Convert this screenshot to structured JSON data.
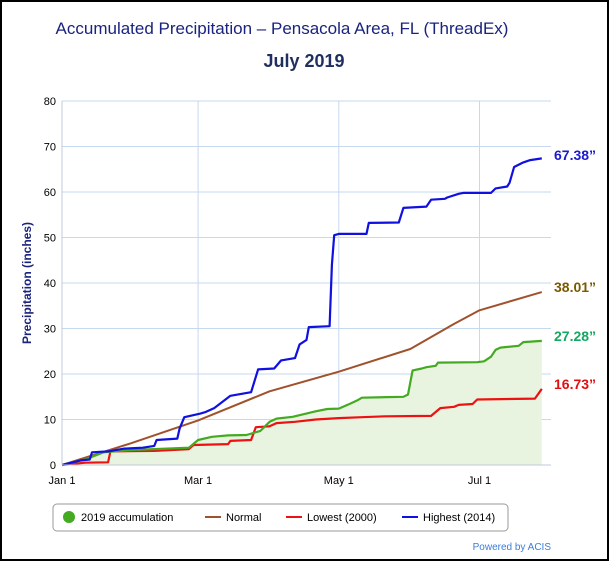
{
  "chart_data": {
    "type": "line",
    "title": "Accumulated Precipitation – Pensacola Area, FL (ThreadEx)",
    "subtitle": "July 2019",
    "xlabel": "",
    "ylabel": "Precipitation (inches)",
    "ylim": [
      0,
      80
    ],
    "yticks": [
      "0",
      "10",
      "20",
      "30",
      "40",
      "50",
      "60",
      "70",
      "80"
    ],
    "xlim": [
      0,
      212
    ],
    "xticks": [
      {
        "label": "Jan 1",
        "x": 0
      },
      {
        "label": "Mar 1",
        "x": 59
      },
      {
        "label": "May 1",
        "x": 120
      },
      {
        "label": "Jul 1",
        "x": 181
      }
    ],
    "grid": true,
    "legend_position": "bottom",
    "credit": "Powered by ACIS",
    "series": [
      {
        "name": "Highest (2014)",
        "color": "#1010e0",
        "end_label": "67.38”",
        "end_color": "#1a1ad0",
        "points": [
          [
            0,
            0
          ],
          [
            8,
            1
          ],
          [
            12,
            1.2
          ],
          [
            13,
            2.8
          ],
          [
            20,
            3
          ],
          [
            27,
            3.6
          ],
          [
            35,
            3.8
          ],
          [
            40,
            4.2
          ],
          [
            41,
            5.5
          ],
          [
            50,
            5.8
          ],
          [
            51,
            8
          ],
          [
            53,
            10.5
          ],
          [
            60,
            11.3
          ],
          [
            62,
            11.6
          ],
          [
            66,
            12.5
          ],
          [
            73,
            15.2
          ],
          [
            82,
            16
          ],
          [
            85,
            21
          ],
          [
            92,
            21.2
          ],
          [
            95,
            23
          ],
          [
            101,
            23.5
          ],
          [
            103,
            26.5
          ],
          [
            106,
            27.5
          ],
          [
            107,
            30.3
          ],
          [
            116,
            30.5
          ],
          [
            117,
            44
          ],
          [
            118,
            50.5
          ],
          [
            120,
            50.8
          ],
          [
            132,
            50.8
          ],
          [
            133,
            53.2
          ],
          [
            146,
            53.3
          ],
          [
            148,
            56.5
          ],
          [
            158,
            56.8
          ],
          [
            160,
            58.3
          ],
          [
            166,
            58.5
          ],
          [
            167,
            58.8
          ],
          [
            172,
            59.6
          ],
          [
            174,
            59.8
          ],
          [
            186,
            59.8
          ],
          [
            188,
            60.8
          ],
          [
            193,
            61.2
          ],
          [
            194,
            62
          ],
          [
            196,
            65.5
          ],
          [
            200,
            66.5
          ],
          [
            203,
            67
          ],
          [
            208,
            67.38
          ]
        ]
      },
      {
        "name": "Normal",
        "color": "#a0522d",
        "end_label": "38.01”",
        "end_color": "#7a5a00",
        "points": [
          [
            0,
            0
          ],
          [
            30,
            4.8
          ],
          [
            59,
            9.8
          ],
          [
            90,
            16.2
          ],
          [
            120,
            20.5
          ],
          [
            151,
            25.5
          ],
          [
            170,
            31
          ],
          [
            181,
            34
          ],
          [
            208,
            38.01
          ]
        ]
      },
      {
        "name": "Lowest (2000)",
        "color": "#ee1111",
        "end_label": "16.73”",
        "end_color": "#e01010",
        "points": [
          [
            0,
            0
          ],
          [
            10,
            0.5
          ],
          [
            20,
            0.6
          ],
          [
            21,
            3
          ],
          [
            40,
            3.1
          ],
          [
            55,
            3.5
          ],
          [
            57,
            4.4
          ],
          [
            72,
            4.6
          ],
          [
            73,
            5.3
          ],
          [
            82,
            5.5
          ],
          [
            84,
            8.3
          ],
          [
            90,
            8.5
          ],
          [
            93,
            9.2
          ],
          [
            101,
            9.5
          ],
          [
            110,
            10
          ],
          [
            120,
            10.3
          ],
          [
            130,
            10.5
          ],
          [
            140,
            10.7
          ],
          [
            160,
            10.8
          ],
          [
            164,
            12.5
          ],
          [
            170,
            12.8
          ],
          [
            172,
            13.2
          ],
          [
            178,
            13.4
          ],
          [
            180,
            14.4
          ],
          [
            205,
            14.6
          ],
          [
            207,
            16
          ],
          [
            208,
            16.73
          ]
        ]
      },
      {
        "name": "2019 accumulation",
        "color": "#44aa22",
        "marker": "circle",
        "fill": "#e8f4e0",
        "end_label": "27.28”",
        "end_color": "#14a860",
        "points": [
          [
            0,
            0
          ],
          [
            10,
            1.2
          ],
          [
            18,
            2.8
          ],
          [
            30,
            3.3
          ],
          [
            40,
            3.5
          ],
          [
            55,
            3.8
          ],
          [
            59,
            5.5
          ],
          [
            65,
            6.2
          ],
          [
            72,
            6.5
          ],
          [
            80,
            6.6
          ],
          [
            86,
            7.5
          ],
          [
            90,
            9.5
          ],
          [
            93,
            10.2
          ],
          [
            100,
            10.6
          ],
          [
            110,
            11.8
          ],
          [
            115,
            12.3
          ],
          [
            120,
            12.4
          ],
          [
            125,
            13.5
          ],
          [
            128,
            14.2
          ],
          [
            130,
            14.8
          ],
          [
            148,
            15
          ],
          [
            150,
            15.5
          ],
          [
            152,
            20.8
          ],
          [
            156,
            21.2
          ],
          [
            158,
            21.5
          ],
          [
            162,
            21.8
          ],
          [
            163,
            22.5
          ],
          [
            180,
            22.6
          ],
          [
            183,
            22.8
          ],
          [
            186,
            23.8
          ],
          [
            188,
            25.3
          ],
          [
            190,
            25.8
          ],
          [
            198,
            26.2
          ],
          [
            200,
            27
          ],
          [
            208,
            27.28
          ]
        ]
      }
    ]
  }
}
